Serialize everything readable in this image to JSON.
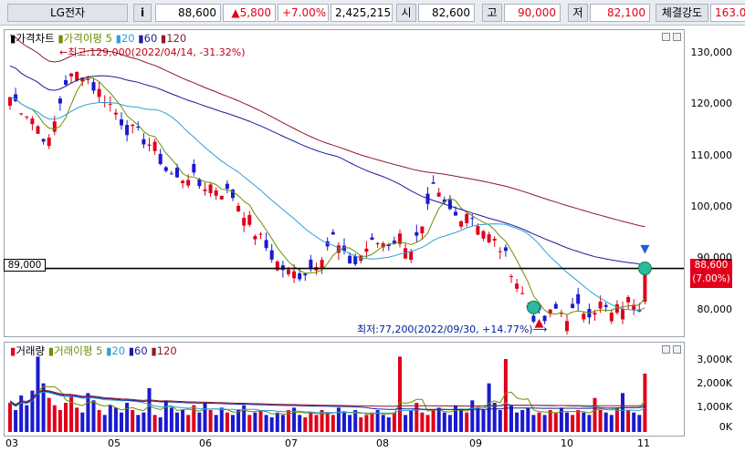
{
  "ticker": {
    "name": "LG전자",
    "info_icon": "i",
    "price": "88,600",
    "change": "▲5,800",
    "change_pct": "+7.00%",
    "volume": "2,425,215",
    "open_label": "시",
    "open": "82,600",
    "high_label": "고",
    "high": "90,000",
    "low_label": "저",
    "low": "82,100",
    "strength_label": "체결강도",
    "strength": "163.0"
  },
  "price_pane": {
    "legend": {
      "marker": "▮",
      "chart": "가격차트",
      "ma_marker": "▮",
      "ma": "가격이평",
      "p5": "5",
      "p20": "20",
      "p60": "60",
      "p120": "120"
    },
    "y_ticks": [
      "130,000",
      "120,000",
      "110,000",
      "100,000",
      "90,000",
      "80,000"
    ],
    "ref_line_label": "89,000",
    "current_label": "88,600",
    "current_pct": "(7.00%)",
    "high_annotation": "←최고:129,000(2022/04/14, -31.32%)",
    "low_annotation": "최저:77,200(2022/09/30, +14.77%)⟶"
  },
  "volume_pane": {
    "legend": {
      "marker": "▮",
      "chart": "거래량",
      "ma_marker": "▮",
      "ma": "거래이평",
      "p5": "5",
      "p20": "20",
      "p60": "60",
      "p120": "120"
    },
    "y_ticks": [
      "3,000K",
      "2,000K",
      "1,000K",
      "0K"
    ]
  },
  "x_ticks": [
    "03",
    "05",
    "06",
    "07",
    "08",
    "09",
    "10",
    "11"
  ],
  "colors": {
    "up": "#e0001b",
    "down": "#1a1ad0",
    "ma5": "#6a8f00",
    "ma20": "#2aa0d8",
    "ma60": "#1c1c9a",
    "ma120": "#8b1a2a"
  },
  "chart_data": {
    "type": "candlestick",
    "ylim_price": [
      77000,
      131000
    ],
    "reference_price": 89000,
    "high": {
      "value": 129000,
      "date": "2022/04/14",
      "pct": -31.32
    },
    "low": {
      "value": 77200,
      "date": "2022/09/30",
      "pct": 14.77
    },
    "close_path": [
      [
        0,
        122000
      ],
      [
        4,
        118000
      ],
      [
        7,
        113000
      ],
      [
        10,
        125000
      ],
      [
        13,
        127000
      ],
      [
        15,
        124000
      ],
      [
        17,
        122000
      ],
      [
        19,
        119000
      ],
      [
        21,
        116000
      ],
      [
        24,
        114000
      ],
      [
        26,
        112000
      ],
      [
        28,
        108000
      ],
      [
        30,
        106000
      ],
      [
        32,
        107000
      ],
      [
        34,
        105000
      ],
      [
        36,
        105000
      ],
      [
        38,
        104000
      ],
      [
        40,
        103000
      ],
      [
        42,
        100000
      ],
      [
        44,
        96000
      ],
      [
        46,
        93000
      ],
      [
        48,
        90000
      ],
      [
        50,
        88000
      ],
      [
        52,
        88000
      ],
      [
        54,
        89000
      ],
      [
        56,
        92000
      ],
      [
        58,
        95000
      ],
      [
        60,
        91000
      ],
      [
        62,
        90000
      ],
      [
        64,
        93000
      ],
      [
        66,
        94000
      ],
      [
        68,
        94000
      ],
      [
        70,
        95000
      ],
      [
        72,
        93000
      ],
      [
        74,
        96000
      ],
      [
        76,
        104000
      ],
      [
        78,
        101000
      ],
      [
        80,
        99000
      ],
      [
        82,
        100000
      ],
      [
        84,
        98000
      ],
      [
        86,
        95000
      ],
      [
        88,
        93000
      ],
      [
        90,
        89000
      ],
      [
        92,
        84000
      ],
      [
        94,
        80000
      ],
      [
        96,
        79000
      ],
      [
        98,
        81000
      ],
      [
        100,
        80000
      ],
      [
        102,
        81000
      ],
      [
        104,
        81000
      ],
      [
        106,
        82000
      ],
      [
        108,
        80000
      ],
      [
        110,
        82000
      ],
      [
        112,
        83000
      ],
      [
        113,
        82500
      ],
      [
        114,
        88600
      ]
    ],
    "volume_bars": [
      1200,
      900,
      1500,
      1100,
      1700,
      3100,
      2000,
      1400,
      1100,
      900,
      1200,
      1500,
      1000,
      800,
      1600,
      1300,
      900,
      700,
      1100,
      1000,
      800,
      1200,
      900,
      700,
      800,
      1800,
      700,
      600,
      1300,
      1000,
      800,
      900,
      700,
      1100,
      800,
      1200,
      900,
      700,
      1000,
      800,
      700,
      900,
      1100,
      700,
      800,
      900,
      700,
      600,
      800,
      700,
      900,
      1000,
      700,
      600,
      800,
      700,
      900,
      800,
      700,
      1000,
      800,
      700,
      900,
      600,
      700,
      800,
      900,
      700,
      600,
      800,
      3100,
      700,
      900,
      1200,
      800,
      700,
      900,
      1000,
      800,
      700,
      1100,
      900,
      800,
      1300,
      1000,
      900,
      2000,
      1200,
      900,
      3000,
      1100,
      800,
      900,
      1000,
      700,
      800,
      700,
      900,
      800,
      1000,
      800,
      700,
      900,
      800,
      700,
      1400,
      900,
      800,
      700,
      1000,
      1600,
      900,
      800,
      700,
      2400
    ],
    "volume_ylim": [
      0,
      3300
    ],
    "x_labels": [
      "03",
      "05",
      "06",
      "07",
      "08",
      "09",
      "10",
      "11"
    ]
  }
}
